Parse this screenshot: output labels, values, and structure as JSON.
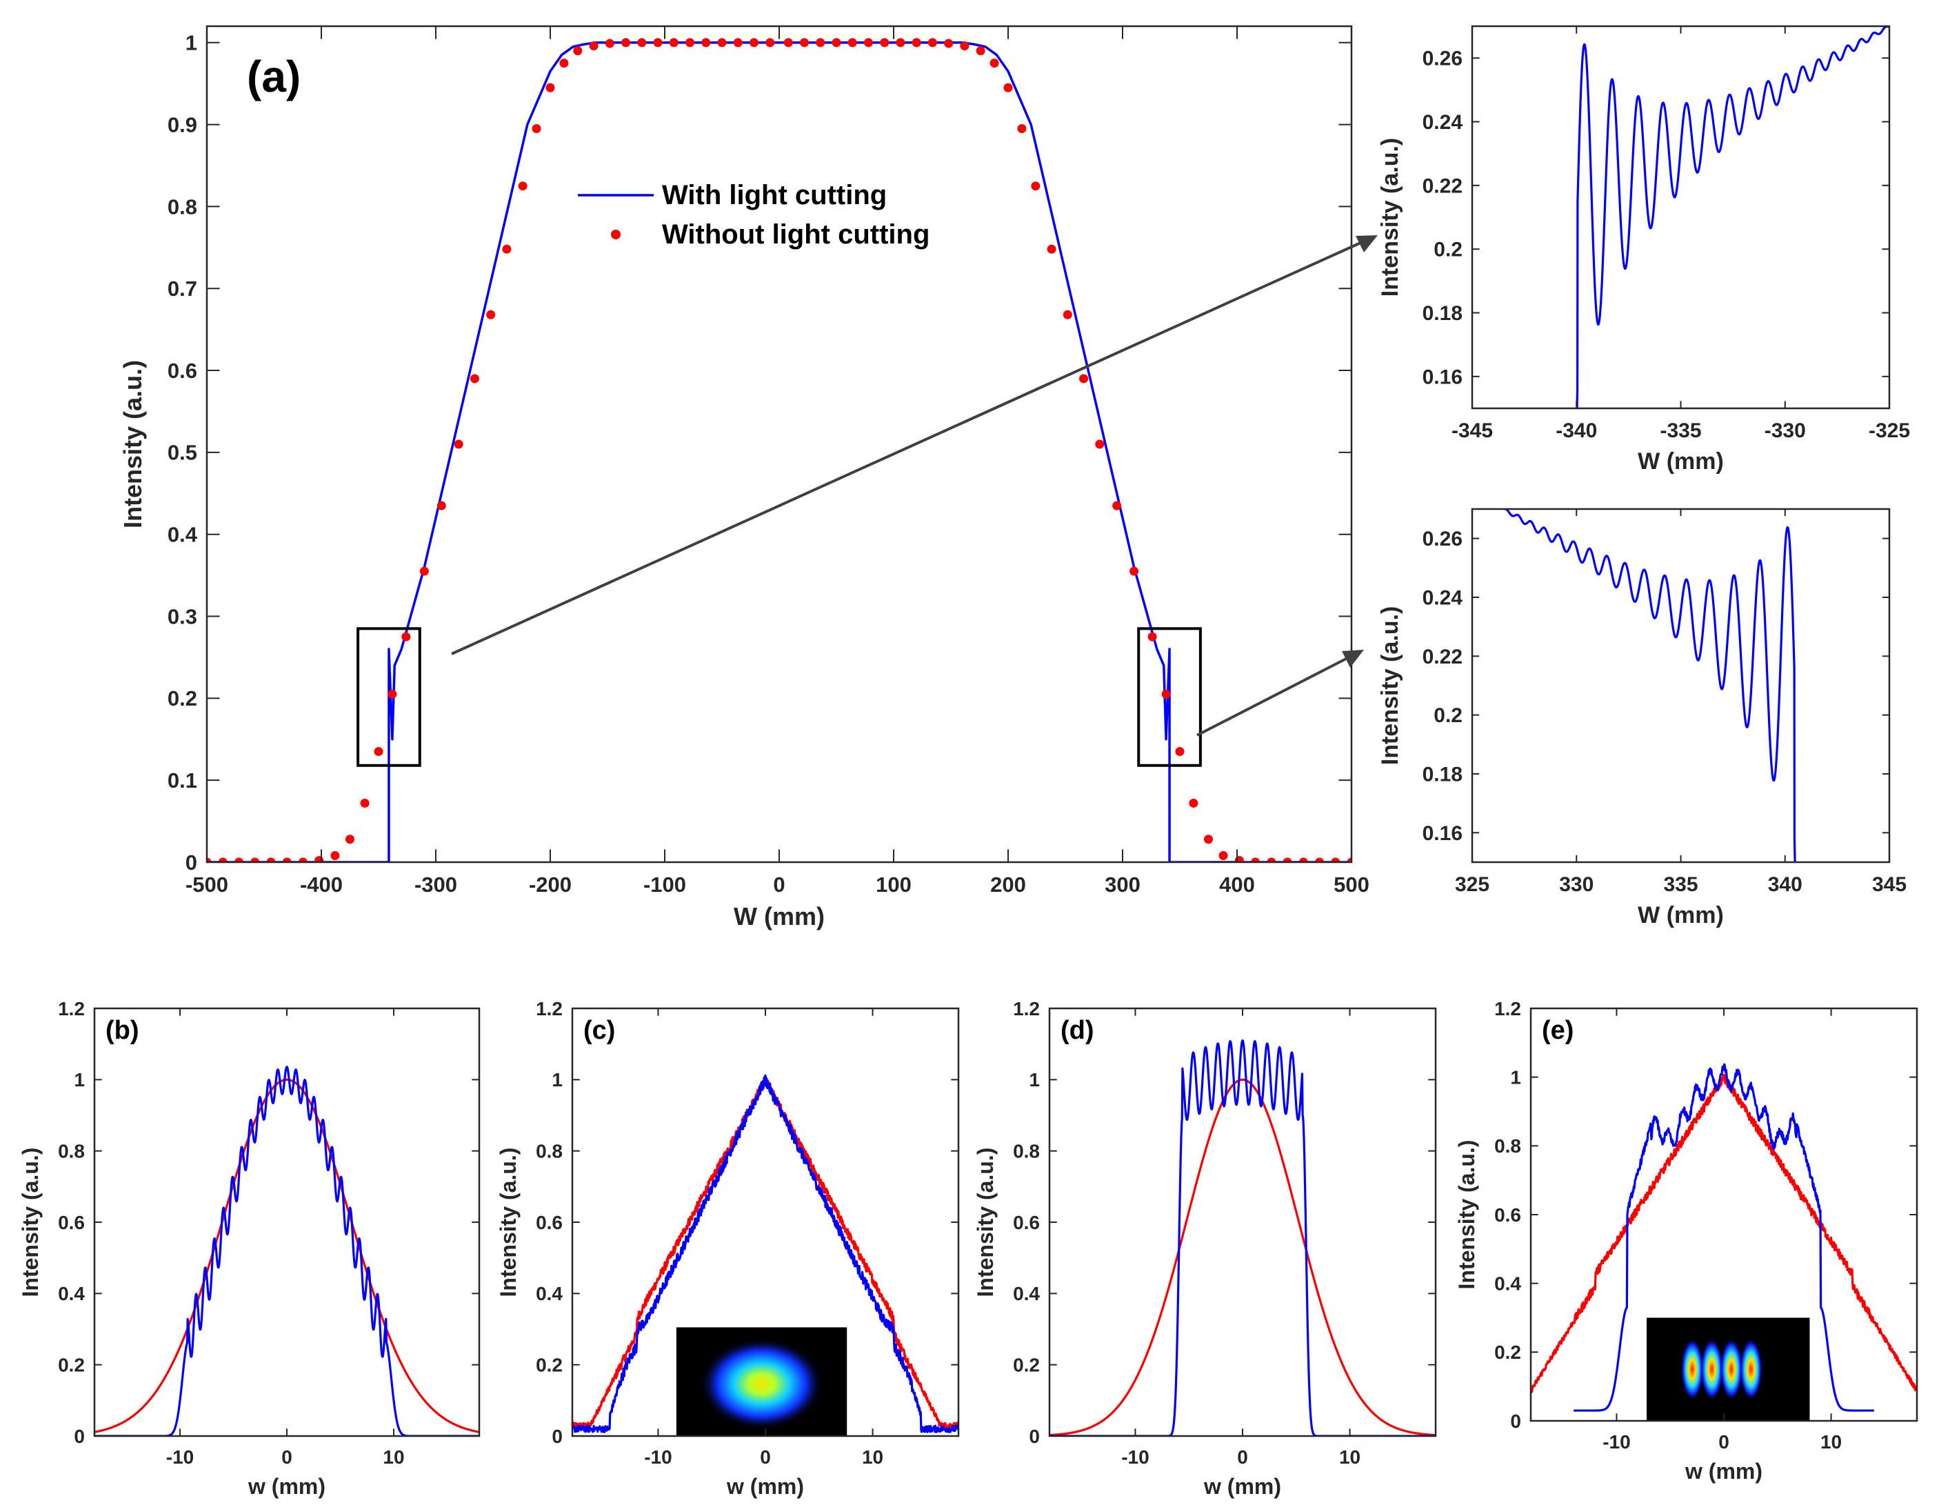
{
  "chart_data": [
    {
      "id": "a",
      "type": "line",
      "panel_label": "(a)",
      "xlabel": "W (mm)",
      "ylabel": "Intensity (a.u.)",
      "xlim": [
        -500,
        500
      ],
      "ylim": [
        0,
        1.02
      ],
      "xticks": [
        -500,
        -400,
        -300,
        -200,
        -100,
        0,
        100,
        200,
        300,
        400,
        500
      ],
      "yticks": [
        0,
        0.1,
        0.2,
        0.3,
        0.4,
        0.5,
        0.6,
        0.7,
        0.8,
        0.9,
        1
      ],
      "legend_position": "center",
      "series": [
        {
          "name": "With light cutting",
          "style": "line",
          "color": "#0000ff",
          "x": [
            -500,
            -341,
            -341,
            -338,
            -336,
            -330,
            -310,
            -280,
            -250,
            -220,
            -200,
            -190,
            -180,
            -170,
            -160,
            -150,
            150,
            160,
            170,
            180,
            190,
            200,
            220,
            250,
            280,
            310,
            330,
            336,
            338,
            341,
            341,
            500
          ],
          "y": [
            0,
            0,
            0.26,
            0.15,
            0.24,
            0.26,
            0.36,
            0.54,
            0.72,
            0.9,
            0.965,
            0.985,
            0.995,
            0.998,
            1.0,
            1.0,
            1.0,
            1.0,
            0.998,
            0.995,
            0.985,
            0.965,
            0.9,
            0.72,
            0.54,
            0.36,
            0.26,
            0.24,
            0.15,
            0.26,
            0,
            0
          ]
        },
        {
          "name": "Without light cutting",
          "style": "dots",
          "color": "#ff0000",
          "x": [
            -500,
            -486,
            -472,
            -458,
            -444,
            -430,
            -416,
            -402,
            -388,
            -375,
            -362,
            -350,
            -338,
            -326,
            -310,
            -295,
            -280,
            -266,
            -252,
            -238,
            -224,
            -212,
            -200,
            -188,
            -176,
            -162,
            -148,
            -134,
            -120,
            -106,
            -92,
            -78,
            -64,
            -50,
            -36,
            -22,
            -8,
            8,
            22,
            36,
            50,
            64,
            78,
            92,
            106,
            120,
            134,
            148,
            162,
            176,
            188,
            200,
            212,
            224,
            238,
            252,
            266,
            280,
            295,
            310,
            326,
            338,
            350,
            362,
            375,
            388,
            402,
            416,
            430,
            444,
            458,
            472,
            486,
            500
          ],
          "y": [
            0,
            0,
            0,
            0,
            0,
            0,
            0,
            0.002,
            0.008,
            0.028,
            0.072,
            0.135,
            0.205,
            0.275,
            0.355,
            0.435,
            0.51,
            0.59,
            0.668,
            0.748,
            0.825,
            0.895,
            0.945,
            0.975,
            0.99,
            0.996,
            0.999,
            1.0,
            1.0,
            1.0,
            1.0,
            1.0,
            1.0,
            1.0,
            1.0,
            1.0,
            1.0,
            1.0,
            1.0,
            1.0,
            1.0,
            1.0,
            1.0,
            1.0,
            1.0,
            1.0,
            1.0,
            0.999,
            0.996,
            0.99,
            0.975,
            0.945,
            0.895,
            0.825,
            0.748,
            0.668,
            0.59,
            0.51,
            0.435,
            0.355,
            0.275,
            0.205,
            0.135,
            0.072,
            0.028,
            0.008,
            0.002,
            0,
            0,
            0,
            0,
            0,
            0,
            0
          ]
        }
      ],
      "highlight_boxes": [
        {
          "x0": -368,
          "x1": -314,
          "y0": 0.118,
          "y1": 0.285
        },
        {
          "x0": 314,
          "x1": 368,
          "y0": 0.118,
          "y1": 0.285
        }
      ]
    },
    {
      "id": "a-zoom-left",
      "type": "line",
      "xlabel": "W (mm)",
      "ylabel": "Intensity (a.u.)",
      "xlim": [
        -345,
        -325
      ],
      "ylim": [
        0.15,
        0.27
      ],
      "xticks": [
        -345,
        -340,
        -335,
        -330,
        -325
      ],
      "yticks": [
        0.16,
        0.18,
        0.2,
        0.22,
        0.24,
        0.26
      ],
      "series": [
        {
          "style": "line",
          "color": "#0000ff",
          "oscillation": {
            "x_start": -340.3,
            "x_end": -325,
            "edge": "left",
            "envelope_start": 0.212,
            "envelope_end": 0.27,
            "first_amplitude": 0.055,
            "decay": 0.2,
            "period_start": 1.4,
            "period_end": 0.55
          }
        }
      ]
    },
    {
      "id": "a-zoom-right",
      "type": "line",
      "xlabel": "W (mm)",
      "ylabel": "Intensity (a.u.)",
      "xlim": [
        325,
        345
      ],
      "ylim": [
        0.15,
        0.27
      ],
      "xticks": [
        325,
        330,
        335,
        340,
        345
      ],
      "yticks": [
        0.16,
        0.18,
        0.2,
        0.22,
        0.24,
        0.26
      ],
      "series": [
        {
          "style": "line",
          "color": "#0000ff",
          "oscillation": {
            "x_start": 326.5,
            "x_end": 340.8,
            "edge": "right",
            "envelope_start": 0.27,
            "envelope_end": 0.212,
            "first_amplitude": 0.055,
            "decay": 0.2,
            "period_start": 0.55,
            "period_end": 1.4
          }
        }
      ]
    },
    {
      "id": "b",
      "type": "line",
      "panel_label": "(b)",
      "xlabel": "w (mm)",
      "ylabel": "Intensity (a.u.)",
      "xlim": [
        -18,
        18
      ],
      "ylim": [
        0,
        1.2
      ],
      "xticks": [
        -10,
        0,
        10
      ],
      "yticks": [
        0,
        0.2,
        0.4,
        0.6,
        0.8,
        1,
        1.2
      ],
      "series": [
        {
          "style": "line",
          "color": "#ff0000",
          "gaussian_sigma": 6.0
        },
        {
          "style": "line",
          "color": "#0000ff",
          "gaussian_sigma": 5.7,
          "ripple_amplitude": 0.06,
          "ripple_period": 0.85,
          "cutoff": 9.3
        }
      ]
    },
    {
      "id": "c",
      "type": "line",
      "panel_label": "(c)",
      "xlabel": "w (mm)",
      "ylabel": "Intensity (a.u.)",
      "xlim": [
        -18,
        18
      ],
      "ylim": [
        0,
        1.2
      ],
      "xticks": [
        -10,
        0,
        10
      ],
      "yticks": [
        0,
        0.2,
        0.4,
        0.6,
        0.8,
        1,
        1.2
      ],
      "inset": {
        "kind": "single-spot",
        "x0": -8.3,
        "x1": 7.6,
        "y0": 0.0,
        "y1": 0.305
      },
      "series": [
        {
          "style": "line",
          "color": "#ff0000",
          "tri_halfwidth": 17.5,
          "noise": 0.025
        },
        {
          "style": "line",
          "color": "#0000ff",
          "tri_halfwidth": 16.0,
          "noise": 0.03,
          "shoulder": 13.5
        }
      ]
    },
    {
      "id": "d",
      "type": "line",
      "panel_label": "(d)",
      "xlabel": "w (mm)",
      "ylabel": "Intensity (a.u.)",
      "xlim": [
        -18,
        18
      ],
      "ylim": [
        0,
        1.2
      ],
      "xticks": [
        -10,
        0,
        10
      ],
      "yticks": [
        0,
        0.2,
        0.4,
        0.6,
        0.8,
        1,
        1.2
      ],
      "series": [
        {
          "style": "line",
          "color": "#ff0000",
          "gaussian_sigma": 5.2
        },
        {
          "style": "line",
          "color": "#0000ff",
          "flat_top": 1.02,
          "ripple_amplitude": 0.09,
          "ripple_period": 1.15,
          "cutoff": 5.6
        }
      ]
    },
    {
      "id": "e",
      "type": "line",
      "panel_label": "(e)",
      "xlabel": "w (mm)",
      "ylabel": "Intensity (a.u.)",
      "xlim": [
        -18,
        18
      ],
      "ylim": [
        0,
        1.2
      ],
      "xticks": [
        -10,
        0,
        10
      ],
      "yticks": [
        0,
        0.2,
        0.4,
        0.6,
        0.8,
        1,
        1.2
      ],
      "inset": {
        "kind": "four-spots",
        "x0": -7.2,
        "x1": 8.0,
        "y0": 0.0,
        "y1": 0.3
      },
      "series": [
        {
          "style": "line",
          "color": "#ff0000",
          "tri_halfwidth": 20.5,
          "noise": 0.025
        },
        {
          "style": "line",
          "color": "#0000ff",
          "shaped_top": true,
          "cutoff": 9.0,
          "floor": 0.03,
          "floor_extent": 14
        }
      ]
    }
  ]
}
